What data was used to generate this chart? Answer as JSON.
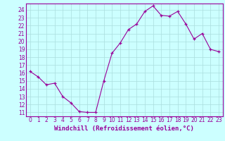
{
  "x": [
    0,
    1,
    2,
    3,
    4,
    5,
    6,
    7,
    8,
    9,
    10,
    11,
    12,
    13,
    14,
    15,
    16,
    17,
    18,
    19,
    20,
    21,
    22,
    23
  ],
  "y": [
    16.2,
    15.5,
    14.5,
    14.7,
    13.0,
    12.2,
    11.1,
    11.0,
    11.0,
    15.0,
    18.5,
    19.8,
    21.5,
    22.2,
    23.8,
    24.5,
    23.3,
    23.2,
    23.8,
    22.2,
    20.3,
    21.0,
    19.0,
    18.7
  ],
  "line_color": "#990099",
  "marker_color": "#990099",
  "bg_color": "#ccffff",
  "grid_color": "#aadddd",
  "xlabel": "Windchill (Refroidissement éolien,°C)",
  "xlabel_color": "#990099",
  "ylim": [
    10.5,
    24.8
  ],
  "xlim": [
    -0.5,
    23.5
  ],
  "yticks": [
    11,
    12,
    13,
    14,
    15,
    16,
    17,
    18,
    19,
    20,
    21,
    22,
    23,
    24
  ],
  "xticks": [
    0,
    1,
    2,
    3,
    4,
    5,
    6,
    7,
    8,
    9,
    10,
    11,
    12,
    13,
    14,
    15,
    16,
    17,
    18,
    19,
    20,
    21,
    22,
    23
  ],
  "tick_fontsize": 5.5,
  "xlabel_fontsize": 6.5,
  "axis_color": "#990099"
}
